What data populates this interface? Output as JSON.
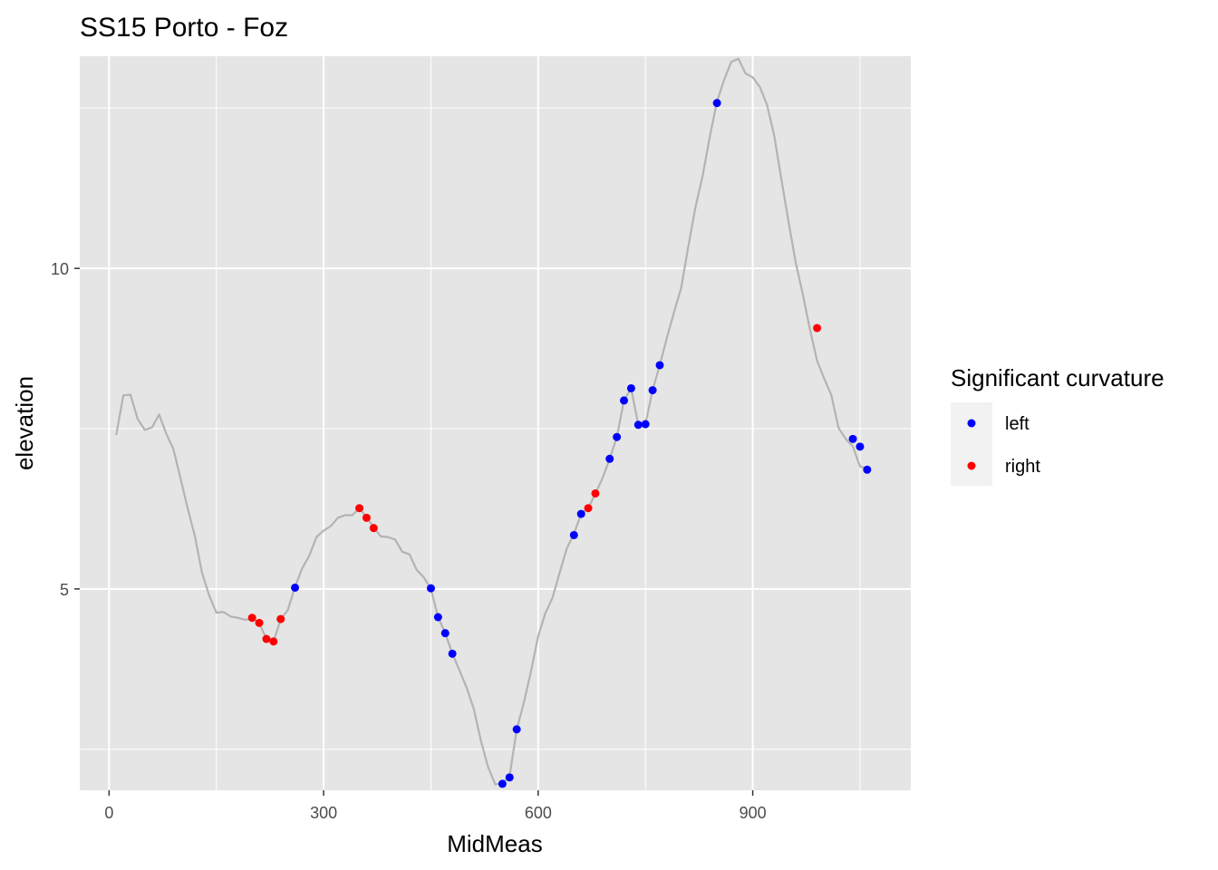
{
  "chart_data": {
    "type": "line",
    "title": "SS15 Porto - Foz",
    "xlabel": "MidMeas",
    "ylabel": "elevation",
    "xlim": [
      -41,
      1121
    ],
    "ylim": [
      1.86,
      13.31
    ],
    "x_ticks": [
      0,
      300,
      600,
      900
    ],
    "x_tick_labels": [
      "0",
      "300",
      "600",
      "900"
    ],
    "y_ticks": [
      5,
      10
    ],
    "y_tick_labels": [
      "5",
      "10"
    ],
    "x_minor_ticks": [
      150,
      450,
      750,
      1050
    ],
    "y_minor_ticks": [
      2.5,
      7.5,
      12.5
    ],
    "grid": true,
    "line_color": "#b3b3b3",
    "panel_background": "#e5e5e5",
    "line": {
      "x": [
        10,
        20,
        30,
        40,
        50,
        60,
        70,
        80,
        90,
        100,
        110,
        120,
        130,
        140,
        150,
        160,
        170,
        180,
        190,
        200,
        210,
        220,
        230,
        240,
        250,
        260,
        270,
        280,
        290,
        300,
        310,
        320,
        330,
        340,
        350,
        360,
        370,
        380,
        390,
        400,
        410,
        420,
        430,
        440,
        450,
        460,
        470,
        480,
        490,
        500,
        510,
        520,
        530,
        540,
        550,
        560,
        570,
        580,
        590,
        600,
        610,
        620,
        630,
        640,
        650,
        660,
        670,
        680,
        690,
        700,
        710,
        720,
        730,
        740,
        750,
        760,
        770,
        780,
        790,
        800,
        810,
        820,
        830,
        840,
        850,
        860,
        870,
        880,
        890,
        900,
        910,
        920,
        930,
        940,
        950,
        960,
        970,
        980,
        990,
        1000,
        1010,
        1020,
        1030,
        1040,
        1050,
        1060
      ],
      "y": [
        7.4,
        8.02,
        8.03,
        7.65,
        7.48,
        7.52,
        7.72,
        7.42,
        7.18,
        6.72,
        6.25,
        5.82,
        5.25,
        4.9,
        4.63,
        4.64,
        4.57,
        4.55,
        4.52,
        4.53,
        4.47,
        4.22,
        4.18,
        4.53,
        4.67,
        5.03,
        5.32,
        5.52,
        5.81,
        5.91,
        5.98,
        6.11,
        6.15,
        6.15,
        6.26,
        6.12,
        5.96,
        5.82,
        5.81,
        5.77,
        5.58,
        5.54,
        5.3,
        5.18,
        5.0,
        4.56,
        4.31,
        3.99,
        3.73,
        3.46,
        3.13,
        2.63,
        2.22,
        1.95,
        1.97,
        2.08,
        2.81,
        3.23,
        3.72,
        4.26,
        4.62,
        4.86,
        5.25,
        5.63,
        5.86,
        6.17,
        6.26,
        6.49,
        6.73,
        7.03,
        7.37,
        7.94,
        8.13,
        7.56,
        7.57,
        8.1,
        8.49,
        8.92,
        9.32,
        9.7,
        10.35,
        10.96,
        11.45,
        12.05,
        12.6,
        12.94,
        13.22,
        13.27,
        13.04,
        12.98,
        12.83,
        12.55,
        12.07,
        11.39,
        10.73,
        10.1,
        9.6,
        9.05,
        8.56,
        8.28,
        8.02,
        7.51,
        7.34,
        7.22,
        6.91,
        6.88
      ]
    },
    "series": [
      {
        "name": "left",
        "color": "#0000ff",
        "x": [
          260,
          450,
          460,
          470,
          480,
          550,
          560,
          570,
          650,
          660,
          700,
          710,
          720,
          730,
          740,
          750,
          760,
          770,
          850,
          1040,
          1050,
          1060
        ],
        "y": [
          5.02,
          5.01,
          4.56,
          4.31,
          3.99,
          1.96,
          2.06,
          2.81,
          5.84,
          6.17,
          7.03,
          7.37,
          7.94,
          8.13,
          7.56,
          7.57,
          8.1,
          8.49,
          12.58,
          7.34,
          7.22,
          6.86
        ]
      },
      {
        "name": "right",
        "color": "#ff0000",
        "x": [
          200,
          210,
          220,
          230,
          240,
          350,
          360,
          370,
          670,
          680,
          990
        ],
        "y": [
          4.55,
          4.47,
          4.22,
          4.18,
          4.53,
          6.26,
          6.11,
          5.95,
          6.26,
          6.49,
          9.07
        ]
      }
    ],
    "legend": {
      "title": "Significant curvature",
      "position": "right",
      "entries": [
        "left",
        "right"
      ]
    }
  }
}
